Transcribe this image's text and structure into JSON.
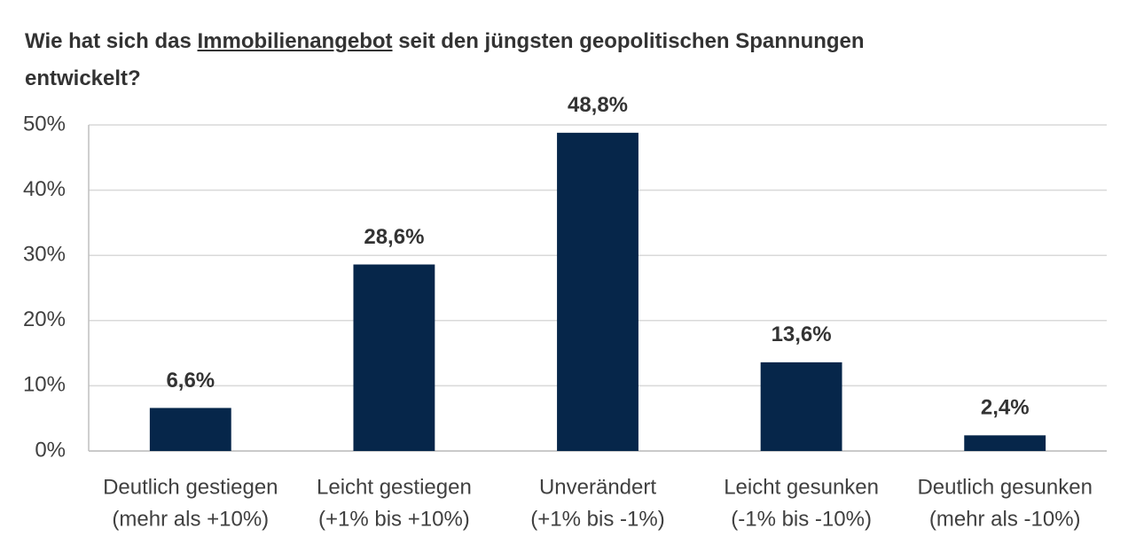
{
  "chart_data": {
    "type": "bar",
    "title_parts": [
      "Wie hat sich das ",
      "Immobilienangebot",
      " seit den jüngsten geopolitischen Spannungen entwickelt?"
    ],
    "categories": [
      [
        "Deutlich gestiegen",
        "(mehr als +10%)"
      ],
      [
        "Leicht gestiegen",
        "(+1% bis +10%)"
      ],
      [
        "Unverändert",
        "(+1% bis -1%)"
      ],
      [
        "Leicht gesunken",
        "(-1% bis -10%)"
      ],
      [
        "Deutlich gesunken",
        "(mehr als -10%)"
      ]
    ],
    "values": [
      6.6,
      28.6,
      48.8,
      13.6,
      2.4
    ],
    "value_labels": [
      "6,6%",
      "28,6%",
      "48,8%",
      "13,6%",
      "2,4%"
    ],
    "color": "#06264a",
    "ylim": [
      0,
      50
    ],
    "yticks": [
      {
        "value": 0,
        "label": "0%"
      },
      {
        "value": 10,
        "label": "10%"
      },
      {
        "value": 20,
        "label": "20%"
      },
      {
        "value": 30,
        "label": "30%"
      },
      {
        "value": 40,
        "label": "40%"
      },
      {
        "value": 50,
        "label": "50%"
      }
    ],
    "grid": true
  }
}
